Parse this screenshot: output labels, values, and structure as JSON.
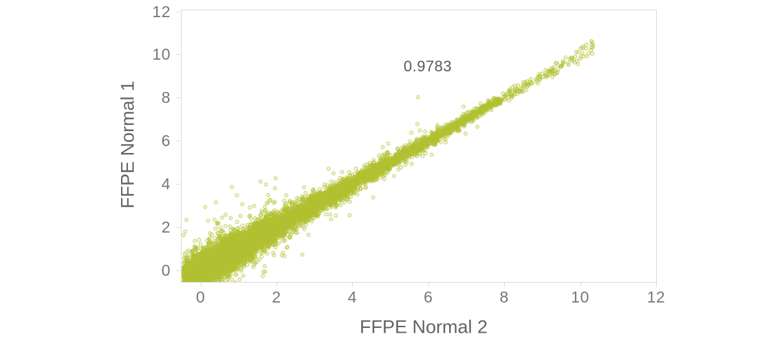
{
  "figure": {
    "background": "#ffffff",
    "x_axis_label": "FFPE Normal 2",
    "y_axis_label": "FFPE Normal 1",
    "annotation": "0.9783",
    "colors": {
      "point": "#b0c030",
      "axis_line": "#d9d9d9",
      "tick_text": "#767676",
      "label_text": "#646464",
      "annotation_text": "#595959"
    }
  },
  "chart_data": {
    "type": "scatter",
    "title": "",
    "xlabel": "FFPE Normal 2",
    "ylabel": "FFPE Normal 1",
    "annotation_text": "0.9783",
    "correlation": 0.9783,
    "annotation_position": {
      "x": 6.0,
      "y": 9.4
    },
    "xlim": [
      -0.5,
      12
    ],
    "ylim": [
      -0.55,
      12.05
    ],
    "x_ticks": [
      0,
      2,
      4,
      6,
      8,
      10,
      12
    ],
    "y_ticks": [
      0,
      2,
      4,
      6,
      8,
      10,
      12
    ],
    "grid": false,
    "legend": "none",
    "marker": {
      "shape": "open-circle",
      "radius": 2.3,
      "color": "#b0c030",
      "stroke_width": 1
    },
    "relationship": "y approximately equals x (identity line), dense band, spread shrinks as value grows",
    "seed": 1337,
    "outlier_fraction": 0.05,
    "outlier_sd_multiplier": 2.8,
    "density_segments": [
      {
        "x_range": [
          -0.45,
          0.5
        ],
        "count": 2600,
        "sd": 0.4
      },
      {
        "x_range": [
          0.5,
          1.0
        ],
        "count": 1800,
        "sd": 0.38
      },
      {
        "x_range": [
          1.0,
          1.5
        ],
        "count": 1200,
        "sd": 0.35
      },
      {
        "x_range": [
          1.5,
          2.0
        ],
        "count": 900,
        "sd": 0.32
      },
      {
        "x_range": [
          2.0,
          2.5
        ],
        "count": 650,
        "sd": 0.28
      },
      {
        "x_range": [
          2.5,
          3.0
        ],
        "count": 520,
        "sd": 0.26
      },
      {
        "x_range": [
          3.0,
          4.0
        ],
        "count": 760,
        "sd": 0.23
      },
      {
        "x_range": [
          4.0,
          5.0
        ],
        "count": 560,
        "sd": 0.19
      },
      {
        "x_range": [
          5.0,
          6.0
        ],
        "count": 420,
        "sd": 0.16
      },
      {
        "x_range": [
          6.0,
          7.0
        ],
        "count": 330,
        "sd": 0.13
      },
      {
        "x_range": [
          7.0,
          7.9
        ],
        "count": 230,
        "sd": 0.11
      },
      {
        "x_range": [
          7.9,
          9.0
        ],
        "count": 80,
        "sd": 0.13
      },
      {
        "x_range": [
          9.0,
          10.35
        ],
        "count": 75,
        "sd": 0.15
      }
    ],
    "notable_outliers": [
      [
        5.73,
        8.02
      ]
    ]
  }
}
